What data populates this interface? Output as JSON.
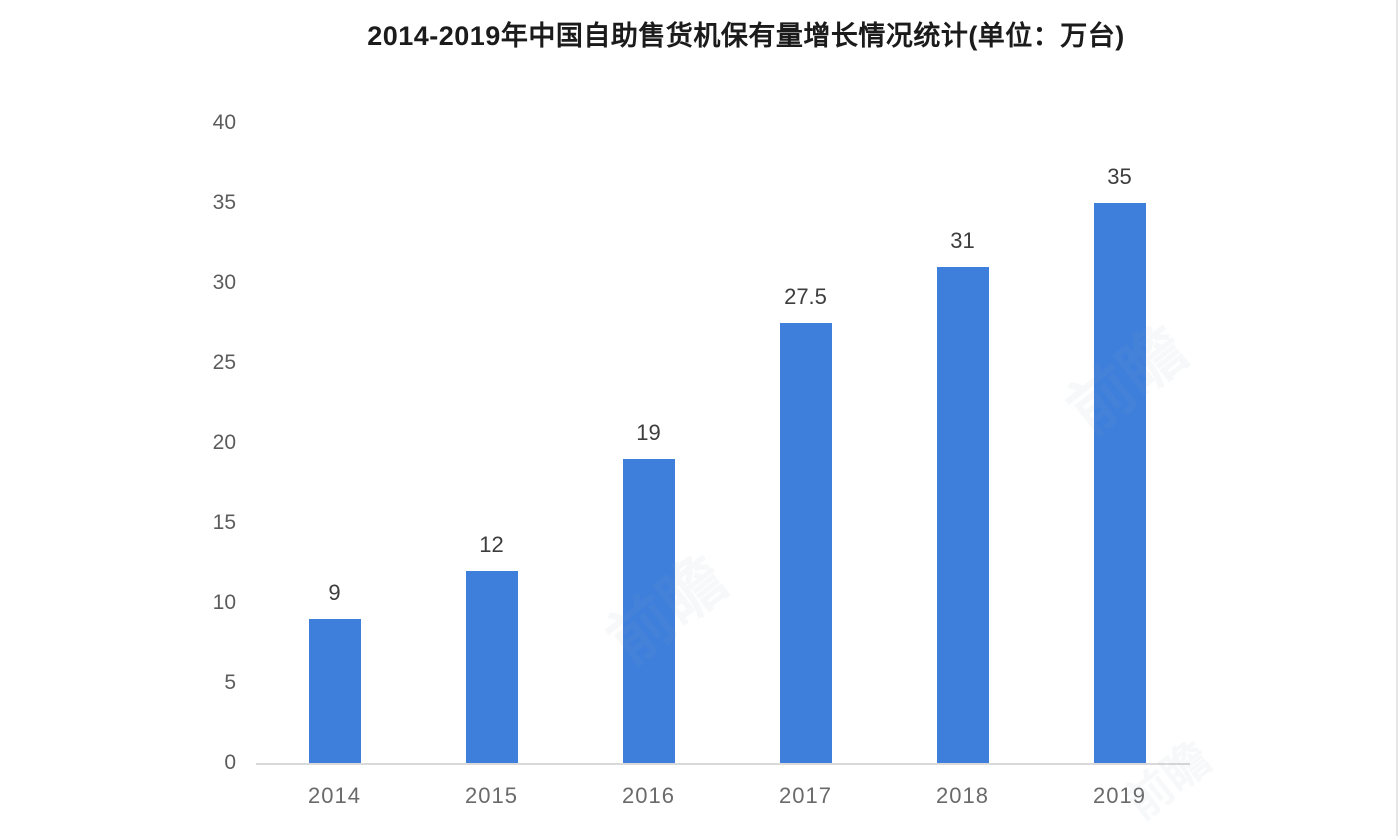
{
  "chart_data": {
    "type": "bar",
    "title": "2014-2019年中国自助售货机保有量增长情况统计(单位：万台)",
    "categories": [
      "2014",
      "2015",
      "2016",
      "2017",
      "2018",
      "2019"
    ],
    "values": [
      9,
      12,
      19,
      27.5,
      31,
      35
    ],
    "value_labels": [
      "9",
      "12",
      "19",
      "27.5",
      "31",
      "35"
    ],
    "series_name": "自助售货机保有量",
    "xlabel": "",
    "ylabel": "",
    "ylim": [
      0,
      40
    ],
    "yticks": [
      0,
      5,
      10,
      15,
      20,
      25,
      30,
      35,
      40
    ],
    "grid": false,
    "legend_position": "none",
    "colors": {
      "bar": "#3f7fdc",
      "axis_line": "#d9d9d9",
      "tick_label": "#5c5c5c",
      "value_label": "#3d3d3d",
      "title": "#1b1b1b",
      "background": "#ffffff"
    }
  },
  "watermark": {
    "text": "前瞻"
  }
}
